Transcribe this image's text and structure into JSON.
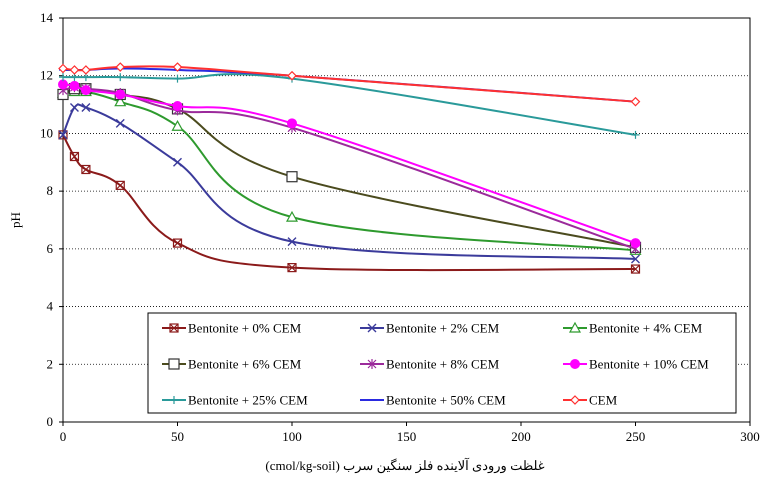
{
  "chart_data": {
    "type": "line",
    "title": "",
    "xlabel": "غلظت ورودی آلاینده فلز سنگین سرب (cmol/kg-soil)",
    "ylabel": "pH",
    "xlim": [
      0,
      300
    ],
    "ylim": [
      0,
      14
    ],
    "xticks": [
      0,
      50,
      100,
      150,
      200,
      250,
      300
    ],
    "yticks": [
      0,
      2,
      4,
      6,
      8,
      10,
      12,
      14
    ],
    "grid": "horizontal",
    "legend_position": "bottom-inside",
    "series": [
      {
        "name": "Bentonite + 0% CEM",
        "color": "#8B1A1A",
        "marker": "square-x",
        "x": [
          0,
          5,
          10,
          25,
          50,
          100,
          250
        ],
        "y": [
          9.95,
          9.2,
          8.75,
          8.2,
          6.2,
          5.35,
          5.3
        ]
      },
      {
        "name": "Bentonite + 2% CEM",
        "color": "#3B3B9B",
        "marker": "x",
        "x": [
          0,
          5,
          10,
          25,
          50,
          100,
          250
        ],
        "y": [
          9.95,
          10.9,
          10.9,
          10.35,
          9.0,
          6.25,
          5.65
        ]
      },
      {
        "name": "Bentonite + 4% CEM",
        "color": "#2E9A2E",
        "marker": "triangle",
        "x": [
          0,
          5,
          10,
          25,
          50,
          100,
          250
        ],
        "y": [
          11.4,
          11.45,
          11.45,
          11.1,
          10.25,
          7.1,
          5.95
        ]
      },
      {
        "name": "Bentonite + 6% CEM",
        "color": "#4B4B1E",
        "marker": "square",
        "x": [
          0,
          5,
          10,
          25,
          50,
          100,
          250
        ],
        "y": [
          11.35,
          11.55,
          11.55,
          11.35,
          10.85,
          8.5,
          6.05
        ]
      },
      {
        "name": "Bentonite + 8% CEM",
        "color": "#9B2A9B",
        "marker": "star",
        "x": [
          0,
          5,
          10,
          25,
          50,
          100,
          250
        ],
        "y": [
          11.5,
          11.6,
          11.55,
          11.4,
          10.8,
          10.2,
          6.0
        ]
      },
      {
        "name": "Bentonite + 10% CEM",
        "color": "#FF00FF",
        "marker": "circle",
        "x": [
          0,
          5,
          10,
          25,
          50,
          100,
          250
        ],
        "y": [
          11.7,
          11.65,
          11.5,
          11.35,
          10.95,
          10.35,
          6.2
        ]
      },
      {
        "name": "Bentonite + 25% CEM",
        "color": "#2A9A9A",
        "marker": "plus",
        "x": [
          0,
          5,
          10,
          25,
          50,
          100,
          250
        ],
        "y": [
          11.95,
          11.95,
          11.95,
          11.95,
          11.9,
          11.9,
          9.95
        ]
      },
      {
        "name": "Bentonite + 50% CEM",
        "color": "#2B2BE0",
        "marker": "dash",
        "x": [
          0,
          5,
          10,
          25,
          50,
          100,
          250
        ],
        "y": [
          12.2,
          12.2,
          12.2,
          12.25,
          12.2,
          12.0,
          11.1
        ]
      },
      {
        "name": "CEM",
        "color": "#FF3030",
        "marker": "diamond",
        "x": [
          0,
          5,
          10,
          25,
          50,
          100,
          250
        ],
        "y": [
          12.25,
          12.2,
          12.2,
          12.3,
          12.3,
          12.0,
          11.1
        ]
      }
    ]
  }
}
